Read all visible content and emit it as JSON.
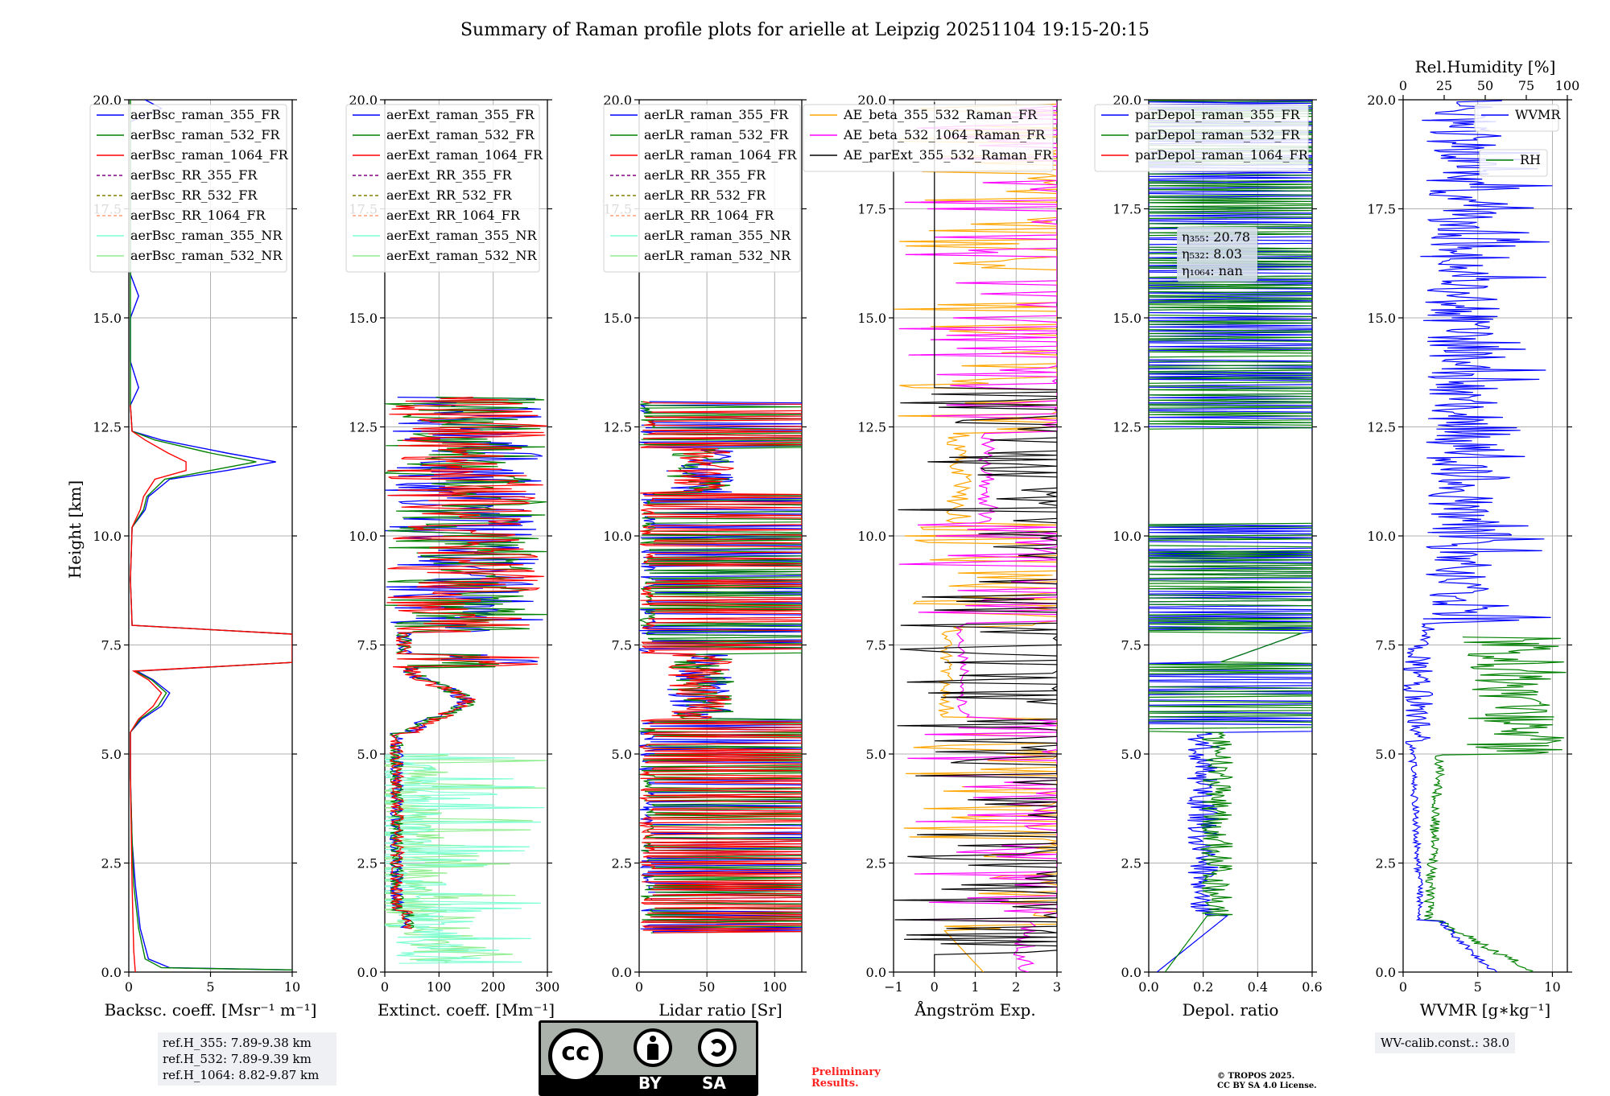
{
  "figure": {
    "title": "Summary of Raman profile plots for arielle at Leipzig 20251104 19:15-20:15",
    "ylabel": "Height [km]",
    "ylim": [
      0,
      20
    ],
    "yticks": [
      "0.0",
      "2.5",
      "5.0",
      "7.5",
      "10.0",
      "12.5",
      "15.0",
      "17.5",
      "20.0"
    ]
  },
  "panels": [
    {
      "xlabel": "Backsc. coeff. [Msr⁻¹ m⁻¹]",
      "xticks": [
        "0",
        "5",
        "10"
      ]
    },
    {
      "xlabel": "Extinct. coeff. [Mm⁻¹]",
      "xticks": [
        "0",
        "100",
        "200",
        "300"
      ]
    },
    {
      "xlabel": "Lidar ratio [Sr]",
      "xticks": [
        "0",
        "50",
        "100"
      ]
    },
    {
      "xlabel": "Ångström Exp.",
      "xticks": [
        "−1",
        "0",
        "1",
        "2",
        "3"
      ]
    },
    {
      "xlabel": "Depol. ratio",
      "xticks": [
        "0.0",
        "0.2",
        "0.4",
        "0.6"
      ]
    },
    {
      "xlabel": "WVMR [g∗kg⁻¹]",
      "xticks": [
        "0",
        "5",
        "10"
      ],
      "top_xlabel": "Rel.Humidity [%]",
      "top_xticks": [
        "0",
        "25",
        "50",
        "75",
        "100"
      ]
    }
  ],
  "legends": {
    "bsc": [
      "aerBsc_raman_355_FR",
      "aerBsc_raman_532_FR",
      "aerBsc_raman_1064_FR",
      "aerBsc_RR_355_FR",
      "aerBsc_RR_532_FR",
      "aerBsc_RR_1064_FR",
      "aerBsc_raman_355_NR",
      "aerBsc_raman_532_NR"
    ],
    "ext": [
      "aerExt_raman_355_FR",
      "aerExt_raman_532_FR",
      "aerExt_raman_1064_FR",
      "aerExt_RR_355_FR",
      "aerExt_RR_532_FR",
      "aerExt_RR_1064_FR",
      "aerExt_raman_355_NR",
      "aerExt_raman_532_NR"
    ],
    "lr": [
      "aerLR_raman_355_FR",
      "aerLR_raman_532_FR",
      "aerLR_raman_1064_FR",
      "aerLR_RR_355_FR",
      "aerLR_RR_532_FR",
      "aerLR_RR_1064_FR",
      "aerLR_raman_355_NR",
      "aerLR_raman_532_NR"
    ],
    "ae": [
      "AE_beta_355_532_Raman_FR",
      "AE_beta_532_1064_Raman_FR",
      "AE_parExt_355_532_Raman_FR"
    ],
    "depol": [
      "parDepol_raman_355_FR",
      "parDepol_raman_532_FR",
      "parDepol_raman_1064_FR"
    ],
    "wv": [
      "WVMR",
      "RH"
    ]
  },
  "eta": {
    "e355_label": "η₃₅₅: 20.78",
    "e532_label": "η₅₃₂: 8.03",
    "e1064_label": "η₁₀₆₄: nan"
  },
  "ref_heights": {
    "h355": "ref.H_355: 7.89-9.38 km",
    "h532": "ref.H_532: 7.89-9.39 km",
    "h1064": "ref.H_1064: 8.82-9.87 km"
  },
  "wv_calib": "WV-calib.const.: 38.0",
  "preliminary": [
    "Preliminary",
    "Results."
  ],
  "copyright": [
    "© TROPOS 2025.",
    "CC BY SA 4.0 License."
  ],
  "license_badge": {
    "by": "BY",
    "sa": "SA",
    "cc": "cc"
  },
  "colors": {
    "c355": "#0000ff",
    "c532": "#008000",
    "c1064": "#ff0000",
    "rr355": "#800080",
    "rr532": "#808000",
    "rr1064": "#ffa07a",
    "nr355": "#7fffd4",
    "nr532": "#90ee90",
    "ae1": "#ffa500",
    "ae2": "#ff00ff",
    "ae3": "#000000"
  },
  "chart_data": [
    {
      "type": "line",
      "panel": "backscatter",
      "xlim": [
        0,
        10
      ],
      "ylim": [
        0,
        20
      ],
      "series": [
        {
          "name": "aerBsc_raman_355_FR",
          "points": [
            [
              10,
              0.05
            ],
            [
              2.5,
              0.1
            ],
            [
              1.2,
              0.3
            ],
            [
              0.7,
              1
            ],
            [
              0.4,
              2
            ],
            [
              0.2,
              3
            ],
            [
              0.1,
              4.5
            ],
            [
              0.1,
              5.5
            ],
            [
              0.8,
              5.8
            ],
            [
              2.0,
              6.1
            ],
            [
              2.5,
              6.4
            ],
            [
              1.5,
              6.7
            ],
            [
              0.5,
              6.9
            ],
            [
              10,
              7.1
            ],
            [
              10,
              7.75
            ],
            [
              0.2,
              7.95
            ],
            [
              0.1,
              9
            ],
            [
              0.2,
              10.2
            ],
            [
              1.0,
              10.6
            ],
            [
              1.2,
              10.9
            ],
            [
              2.5,
              11.3
            ],
            [
              6,
              11.5
            ],
            [
              9,
              11.7
            ],
            [
              6,
              11.9
            ],
            [
              2,
              12.2
            ],
            [
              0.2,
              12.4
            ],
            [
              0.1,
              13
            ],
            [
              0.6,
              13.4
            ],
            [
              0.1,
              14
            ],
            [
              0.1,
              15
            ],
            [
              0.6,
              15.5
            ],
            [
              0.1,
              16
            ],
            [
              0.1,
              19.5
            ],
            [
              2,
              19.8
            ],
            [
              1,
              20
            ]
          ]
        },
        {
          "name": "aerBsc_raman_532_FR",
          "points": [
            [
              10,
              0.05
            ],
            [
              2.0,
              0.1
            ],
            [
              1.0,
              0.3
            ],
            [
              0.6,
              1
            ],
            [
              0.3,
              2
            ],
            [
              0.2,
              3
            ],
            [
              0.1,
              4.5
            ],
            [
              0.1,
              5.5
            ],
            [
              0.7,
              5.8
            ],
            [
              1.8,
              6.1
            ],
            [
              2.3,
              6.4
            ],
            [
              1.4,
              6.7
            ],
            [
              0.4,
              6.9
            ],
            [
              10,
              7.1
            ],
            [
              10,
              7.75
            ],
            [
              0.2,
              7.95
            ],
            [
              0.1,
              9
            ],
            [
              0.2,
              10.2
            ],
            [
              0.9,
              10.6
            ],
            [
              1.1,
              10.9
            ],
            [
              2.2,
              11.3
            ],
            [
              5,
              11.5
            ],
            [
              7.8,
              11.7
            ],
            [
              5,
              11.9
            ],
            [
              1.6,
              12.2
            ],
            [
              0.2,
              12.4
            ],
            [
              0.1,
              13
            ],
            [
              0.1,
              20
            ]
          ]
        },
        {
          "name": "aerBsc_raman_1064_FR",
          "points": [
            [
              0.4,
              0
            ],
            [
              0.3,
              0.5
            ],
            [
              0.2,
              2
            ],
            [
              0.1,
              4.5
            ],
            [
              0.1,
              5.5
            ],
            [
              0.6,
              5.8
            ],
            [
              1.5,
              6.1
            ],
            [
              2.0,
              6.4
            ],
            [
              1.2,
              6.7
            ],
            [
              0.3,
              6.9
            ],
            [
              10,
              7.1
            ],
            [
              10,
              7.75
            ],
            [
              0.2,
              7.95
            ],
            [
              0.1,
              9
            ],
            [
              0.2,
              10.2
            ],
            [
              0.7,
              10.6
            ],
            [
              0.9,
              10.9
            ],
            [
              1.6,
              11.3
            ],
            [
              3.5,
              11.5
            ],
            [
              3.5,
              11.7
            ],
            [
              2.4,
              11.9
            ],
            [
              1.0,
              12.2
            ],
            [
              0.2,
              12.4
            ],
            [
              0.1,
              13
            ]
          ]
        }
      ]
    },
    {
      "type": "line",
      "panel": "extinction",
      "xlim": [
        0,
        300
      ],
      "ylim": [
        0,
        20
      ],
      "series_names": [
        "aerExt_raman_355_FR",
        "aerExt_raman_532_FR",
        "aerExt_raman_1064_FR",
        "aerExt_raman_355_NR",
        "aerExt_raman_532_NR"
      ],
      "valid_height_range_km": [
        0.2,
        13.2
      ]
    },
    {
      "type": "line",
      "panel": "lidar_ratio",
      "xlim": [
        0,
        120
      ],
      "ylim": [
        0,
        20
      ],
      "series_names": [
        "aerLR_raman_355_FR",
        "aerLR_raman_532_FR",
        "aerLR_raman_1064_FR"
      ],
      "valid_height_range_km": [
        0.9,
        13.1
      ]
    },
    {
      "type": "line",
      "panel": "angstrom",
      "xlim": [
        -1,
        3
      ],
      "ylim": [
        0,
        20
      ],
      "series_names": [
        "AE_beta_355_532_Raman_FR",
        "AE_beta_532_1064_Raman_FR",
        "AE_parExt_355_532_Raman_FR"
      ]
    },
    {
      "type": "line",
      "panel": "depol",
      "xlim": [
        0,
        0.6
      ],
      "ylim": [
        0,
        20
      ],
      "series_names": [
        "parDepol_raman_355_FR",
        "parDepol_raman_532_FR"
      ]
    },
    {
      "type": "line",
      "panel": "water_vapor",
      "xlim": [
        0,
        11
      ],
      "top_xlim_RH": [
        0,
        100
      ],
      "ylim": [
        0,
        20
      ],
      "series_names": [
        "WVMR",
        "RH"
      ]
    }
  ]
}
